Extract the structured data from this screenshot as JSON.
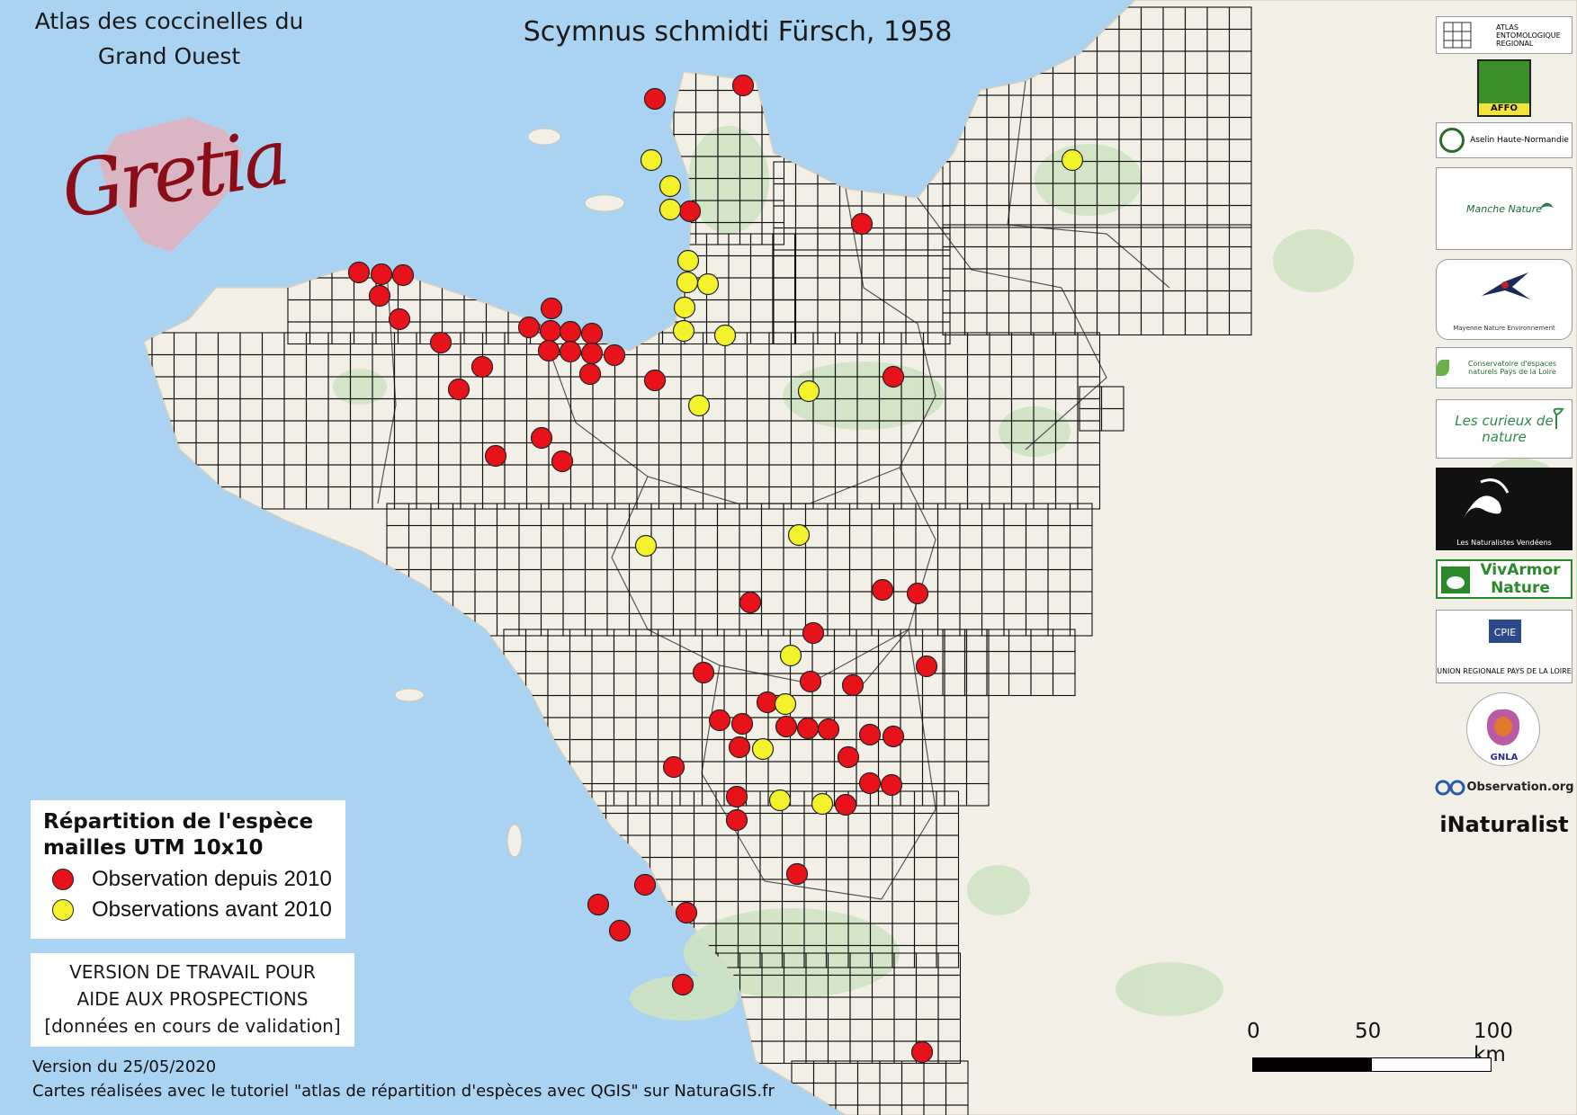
{
  "atlas_title": {
    "line1": "Atlas des coccinelles du",
    "line2": "Grand Ouest"
  },
  "logo": {
    "text": "Gretia"
  },
  "map_title": "Scymnus schmidti Fürsch, 1958",
  "legend": {
    "title_line1": "Répartition de l'espèce",
    "title_line2": "mailles UTM 10x10",
    "items": [
      {
        "label": "Observation depuis 2010",
        "color": "#e8121a"
      },
      {
        "label": "Observations avant 2010",
        "color": "#f4f22a"
      }
    ]
  },
  "notice": {
    "line1": "VERSION DE TRAVAIL POUR",
    "line2": "AIDE AUX PROSPECTIONS",
    "line3": "[données en cours de validation]"
  },
  "footer": {
    "version": "Version du 25/05/2020",
    "credit": "Cartes réalisées avec le tutoriel \"atlas de répartition d'espèces avec QGIS\" sur NaturaGIS.fr"
  },
  "scale": {
    "labels": [
      "0",
      "50",
      "100 km"
    ]
  },
  "partners": [
    {
      "name": "ATLAS ENTOMOLOGIQUE REGIONAL",
      "icon": "grid-logo-icon"
    },
    {
      "name": "AFFO",
      "icon": "tree-logo-icon"
    },
    {
      "name": "Aselin Haute-Normandie",
      "icon": "circle-logo-icon"
    },
    {
      "name": "Manche Nature",
      "icon": "bird-logo-icon"
    },
    {
      "name": "Mayenne Nature Environnement",
      "icon": "swallow-logo-icon"
    },
    {
      "name": "Conservatoire d'espaces naturels Pays de la Loire",
      "icon": "leaf-logo-icon"
    },
    {
      "name": "Les curieux de nature",
      "icon": "plant-logo-icon"
    },
    {
      "name": "Les Naturalistes Vendéens",
      "icon": "orchid-logo-icon"
    },
    {
      "name": "VivArmor Nature",
      "icon": "frog-logo-icon"
    },
    {
      "name": "UNION REGIONALE PAYS DE LA LOIRE",
      "icon": "cpie-logo-icon"
    },
    {
      "name": "GNLA",
      "icon": "beetle-logo-icon"
    },
    {
      "name": "Observation.org",
      "icon": "binoculars-logo-icon"
    },
    {
      "name": "iNaturalist",
      "icon": "inaturalist-logo-icon"
    }
  ],
  "colors": {
    "sea": "#a9d3f0",
    "land": "#f2efe6",
    "region": "#f4f1ea",
    "forest": "#cfe3c2",
    "grid": "#111111",
    "recent": "#e8121a",
    "old": "#f4f22a"
  },
  "occurrences": {
    "recent": [
      [
        728,
        110
      ],
      [
        826,
        95
      ],
      [
        767,
        235
      ],
      [
        958,
        249
      ],
      [
        399,
        303
      ],
      [
        424,
        305
      ],
      [
        448,
        306
      ],
      [
        422,
        329
      ],
      [
        444,
        355
      ],
      [
        613,
        343
      ],
      [
        588,
        364
      ],
      [
        612,
        368
      ],
      [
        634,
        369
      ],
      [
        658,
        371
      ],
      [
        490,
        381
      ],
      [
        610,
        390
      ],
      [
        634,
        391
      ],
      [
        658,
        393
      ],
      [
        683,
        395
      ],
      [
        536,
        408
      ],
      [
        656,
        416
      ],
      [
        728,
        423
      ],
      [
        510,
        433
      ],
      [
        993,
        419
      ],
      [
        602,
        487
      ],
      [
        551,
        507
      ],
      [
        625,
        513
      ],
      [
        981,
        656
      ],
      [
        1020,
        660
      ],
      [
        834,
        670
      ],
      [
        904,
        704
      ],
      [
        1030,
        741
      ],
      [
        782,
        748
      ],
      [
        901,
        758
      ],
      [
        948,
        762
      ],
      [
        853,
        781
      ],
      [
        800,
        801
      ],
      [
        825,
        805
      ],
      [
        874,
        808
      ],
      [
        898,
        810
      ],
      [
        921,
        811
      ],
      [
        967,
        817
      ],
      [
        993,
        819
      ],
      [
        822,
        831
      ],
      [
        943,
        842
      ],
      [
        749,
        853
      ],
      [
        967,
        871
      ],
      [
        991,
        873
      ],
      [
        819,
        886
      ],
      [
        940,
        895
      ],
      [
        819,
        912
      ],
      [
        886,
        972
      ],
      [
        717,
        984
      ],
      [
        665,
        1006
      ],
      [
        763,
        1015
      ],
      [
        689,
        1035
      ],
      [
        759,
        1095
      ],
      [
        1025,
        1170
      ]
    ],
    "old": [
      [
        1192,
        178
      ],
      [
        724,
        178
      ],
      [
        745,
        207
      ],
      [
        745,
        233
      ],
      [
        765,
        290
      ],
      [
        764,
        314
      ],
      [
        787,
        316
      ],
      [
        761,
        342
      ],
      [
        760,
        368
      ],
      [
        806,
        373
      ],
      [
        899,
        435
      ],
      [
        777,
        451
      ],
      [
        888,
        595
      ],
      [
        718,
        607
      ],
      [
        879,
        729
      ],
      [
        873,
        783
      ],
      [
        848,
        833
      ],
      [
        867,
        890
      ],
      [
        914,
        894
      ]
    ]
  }
}
